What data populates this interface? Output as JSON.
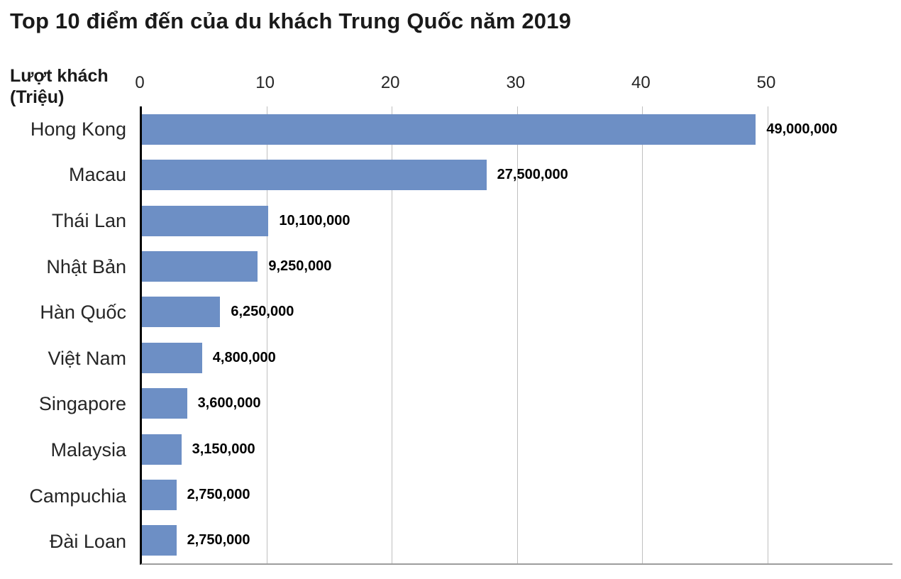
{
  "chart_data": {
    "type": "bar",
    "orientation": "horizontal",
    "title": "Top 10 điểm đến của du khách Trung Quốc năm 2019",
    "axis_label": "Lượt khách\n(Triệu)",
    "categories": [
      "Hong Kong",
      "Macau",
      "Thái Lan",
      "Nhật Bản",
      "Hàn Quốc",
      "Việt Nam",
      "Singapore",
      "Malaysia",
      "Campuchia",
      "Đài Loan"
    ],
    "values_millions": [
      49,
      27.5,
      10.1,
      9.25,
      6.25,
      4.8,
      3.6,
      3.15,
      2.75,
      2.75
    ],
    "value_labels": [
      "49,000,000",
      "27,500,000",
      "10,100,000",
      "9,250,000",
      "6,250,000",
      "4,800,000",
      "3,600,000",
      "3,150,000",
      "2,750,000",
      "2,750,000"
    ],
    "x_ticks": [
      0,
      10,
      20,
      30,
      40,
      50
    ],
    "xlim": [
      0,
      50
    ],
    "grid": true,
    "legend": "none",
    "bar_color": "#6d8fc5",
    "gridline_color": "#bfbfbf",
    "axis_color": "#000000"
  }
}
